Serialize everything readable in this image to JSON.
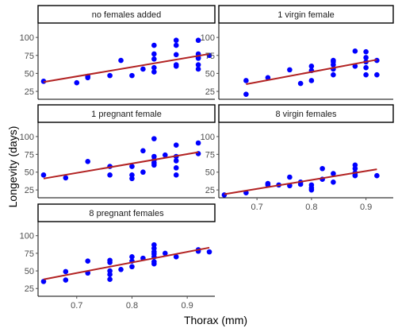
{
  "chart_data": {
    "type": "scatter",
    "xlabel": "Thorax (mm)",
    "ylabel": "Longevity (days)",
    "xlim": [
      0.63,
      0.95
    ],
    "ylim": [
      14,
      120
    ],
    "x_ticks": [
      0.7,
      0.8,
      0.9
    ],
    "y_ticks": [
      25,
      50,
      75,
      100
    ],
    "x_tick_labels": [
      "0.7",
      "0.8",
      "0.9"
    ],
    "y_tick_labels": [
      "25",
      "50",
      "75",
      "100"
    ],
    "colors": {
      "point": "#0000ff",
      "fit_line": "#b22222",
      "frame": "#000000",
      "tick": "#4d4d4d"
    },
    "facets": [
      {
        "name": "no females added",
        "points": [
          [
            0.64,
            39
          ],
          [
            0.7,
            37
          ],
          [
            0.72,
            46
          ],
          [
            0.72,
            44
          ],
          [
            0.76,
            47
          ],
          [
            0.78,
            68
          ],
          [
            0.8,
            47
          ],
          [
            0.82,
            56
          ],
          [
            0.84,
            52
          ],
          [
            0.84,
            58
          ],
          [
            0.84,
            70
          ],
          [
            0.84,
            77
          ],
          [
            0.84,
            89
          ],
          [
            0.88,
            96
          ],
          [
            0.88,
            60
          ],
          [
            0.88,
            62
          ],
          [
            0.88,
            76
          ],
          [
            0.88,
            89
          ],
          [
            0.92,
            96
          ],
          [
            0.92,
            77
          ],
          [
            0.92,
            72
          ],
          [
            0.92,
            71
          ],
          [
            0.92,
            62
          ],
          [
            0.92,
            56
          ],
          [
            0.94,
            75
          ]
        ],
        "fit": [
          [
            0.64,
            38
          ],
          [
            0.94,
            77
          ]
        ]
      },
      {
        "name": "1 virgin female",
        "points": [
          [
            0.68,
            21
          ],
          [
            0.68,
            40
          ],
          [
            0.72,
            44
          ],
          [
            0.76,
            55
          ],
          [
            0.78,
            36
          ],
          [
            0.8,
            40
          ],
          [
            0.8,
            54
          ],
          [
            0.8,
            60
          ],
          [
            0.84,
            48
          ],
          [
            0.84,
            56
          ],
          [
            0.84,
            62
          ],
          [
            0.84,
            66
          ],
          [
            0.84,
            68
          ],
          [
            0.88,
            81
          ],
          [
            0.88,
            60
          ],
          [
            0.9,
            80
          ],
          [
            0.9,
            72
          ],
          [
            0.9,
            66
          ],
          [
            0.9,
            58
          ],
          [
            0.9,
            48
          ],
          [
            0.92,
            68
          ],
          [
            0.92,
            48
          ]
        ],
        "fit": [
          [
            0.68,
            35
          ],
          [
            0.92,
            69
          ]
        ]
      },
      {
        "name": "1 pregnant female",
        "points": [
          [
            0.64,
            46
          ],
          [
            0.68,
            42
          ],
          [
            0.72,
            65
          ],
          [
            0.76,
            58
          ],
          [
            0.76,
            46
          ],
          [
            0.8,
            58
          ],
          [
            0.8,
            46
          ],
          [
            0.8,
            41
          ],
          [
            0.82,
            50
          ],
          [
            0.82,
            80
          ],
          [
            0.84,
            60
          ],
          [
            0.84,
            63
          ],
          [
            0.84,
            67
          ],
          [
            0.84,
            72
          ],
          [
            0.84,
            97
          ],
          [
            0.86,
            74
          ],
          [
            0.88,
            88
          ],
          [
            0.88,
            72
          ],
          [
            0.88,
            66
          ],
          [
            0.88,
            56
          ],
          [
            0.88,
            46
          ],
          [
            0.92,
            91
          ],
          [
            0.92,
            76
          ]
        ],
        "fit": [
          [
            0.64,
            41
          ],
          [
            0.92,
            78
          ]
        ]
      },
      {
        "name": "8 virgin females",
        "points": [
          [
            0.64,
            18
          ],
          [
            0.68,
            21
          ],
          [
            0.72,
            32
          ],
          [
            0.72,
            34
          ],
          [
            0.74,
            32
          ],
          [
            0.76,
            43
          ],
          [
            0.76,
            31
          ],
          [
            0.78,
            33
          ],
          [
            0.78,
            36
          ],
          [
            0.8,
            32
          ],
          [
            0.8,
            25
          ],
          [
            0.8,
            28
          ],
          [
            0.82,
            40
          ],
          [
            0.82,
            55
          ],
          [
            0.84,
            48
          ],
          [
            0.84,
            36
          ],
          [
            0.88,
            60
          ],
          [
            0.88,
            55
          ],
          [
            0.88,
            49
          ],
          [
            0.88,
            46
          ],
          [
            0.88,
            45
          ],
          [
            0.92,
            45
          ]
        ],
        "fit": [
          [
            0.64,
            19
          ],
          [
            0.92,
            54
          ]
        ]
      },
      {
        "name": "8 pregnant females",
        "points": [
          [
            0.64,
            35
          ],
          [
            0.68,
            37
          ],
          [
            0.68,
            49
          ],
          [
            0.72,
            64
          ],
          [
            0.72,
            47
          ],
          [
            0.76,
            65
          ],
          [
            0.76,
            62
          ],
          [
            0.76,
            50
          ],
          [
            0.76,
            45
          ],
          [
            0.76,
            38
          ],
          [
            0.78,
            52
          ],
          [
            0.8,
            70
          ],
          [
            0.8,
            64
          ],
          [
            0.8,
            56
          ],
          [
            0.82,
            68
          ],
          [
            0.84,
            87
          ],
          [
            0.84,
            82
          ],
          [
            0.84,
            77
          ],
          [
            0.84,
            74
          ],
          [
            0.84,
            70
          ],
          [
            0.84,
            63
          ],
          [
            0.84,
            60
          ],
          [
            0.86,
            75
          ],
          [
            0.88,
            70
          ],
          [
            0.92,
            80
          ],
          [
            0.92,
            78
          ],
          [
            0.94,
            77
          ]
        ],
        "fit": [
          [
            0.64,
            38
          ],
          [
            0.94,
            83
          ]
        ]
      }
    ]
  }
}
